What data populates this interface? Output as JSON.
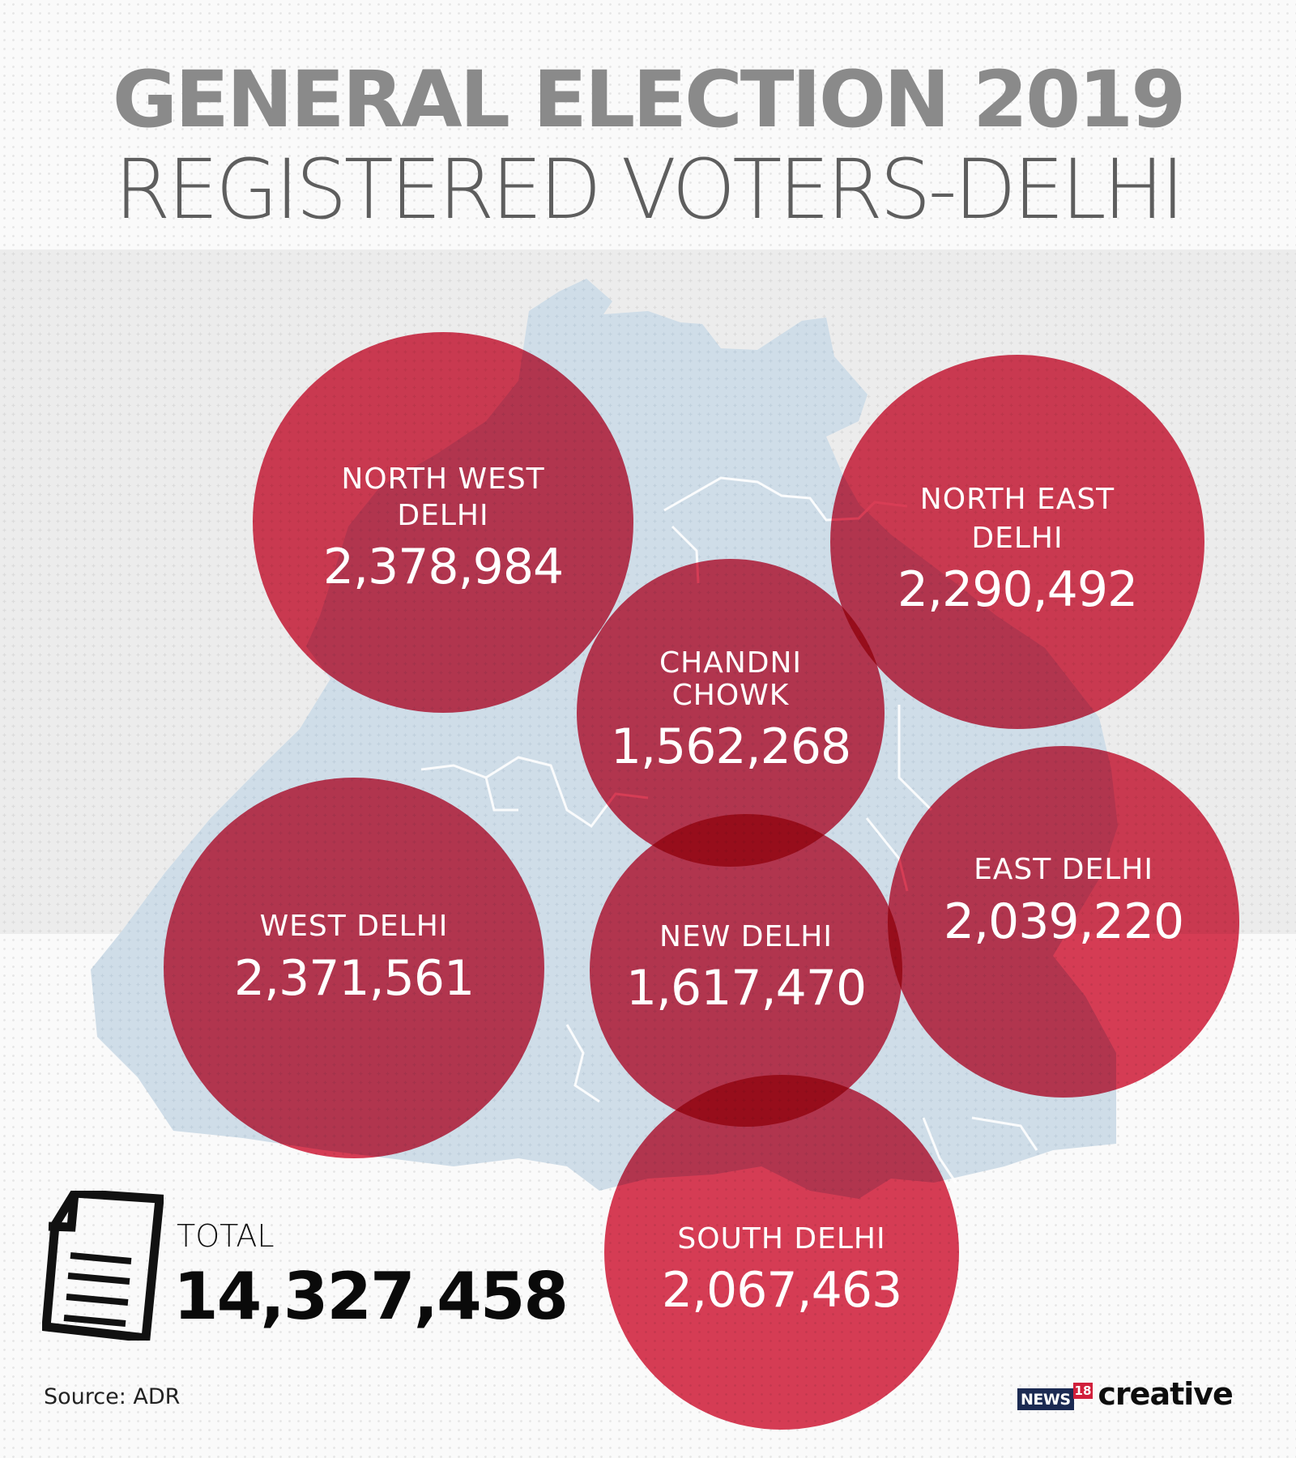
{
  "header": {
    "title": "GENERAL ELECTION 2019",
    "subtitle": "REGISTERED VOTERS-DELHI"
  },
  "colors": {
    "title_gray": "#8a8a8a",
    "subtitle_gray": "#5e5e5e",
    "band_gray": "#ececec",
    "map_blue": "#cfdde8",
    "circle_red": "#d41d3a",
    "text_white": "#ffffff",
    "logo_navy": "#1b2a52",
    "logo_red": "#d11f3b"
  },
  "constituencies": [
    {
      "name_lines": [
        "NORTH WEST",
        "DELHI"
      ],
      "voters": "2,378,984"
    },
    {
      "name_lines": [
        "NORTH EAST",
        "DELHI"
      ],
      "voters": "2,290,492"
    },
    {
      "name_lines": [
        "CHANDNI",
        "CHOWK"
      ],
      "voters": "1,562,268"
    },
    {
      "name_lines": [
        "WEST DELHI"
      ],
      "voters": "2,371,561"
    },
    {
      "name_lines": [
        "NEW DELHI"
      ],
      "voters": "1,617,470"
    },
    {
      "name_lines": [
        "EAST DELHI"
      ],
      "voters": "2,039,220"
    },
    {
      "name_lines": [
        "SOUTH DELHI"
      ],
      "voters": "2,067,463"
    }
  ],
  "total": {
    "icon": "document-icon",
    "label": "TOTAL",
    "value": "14,327,458"
  },
  "source": "Source: ADR",
  "logo": {
    "news": "NEWS",
    "number": "18",
    "creative": "creative"
  }
}
